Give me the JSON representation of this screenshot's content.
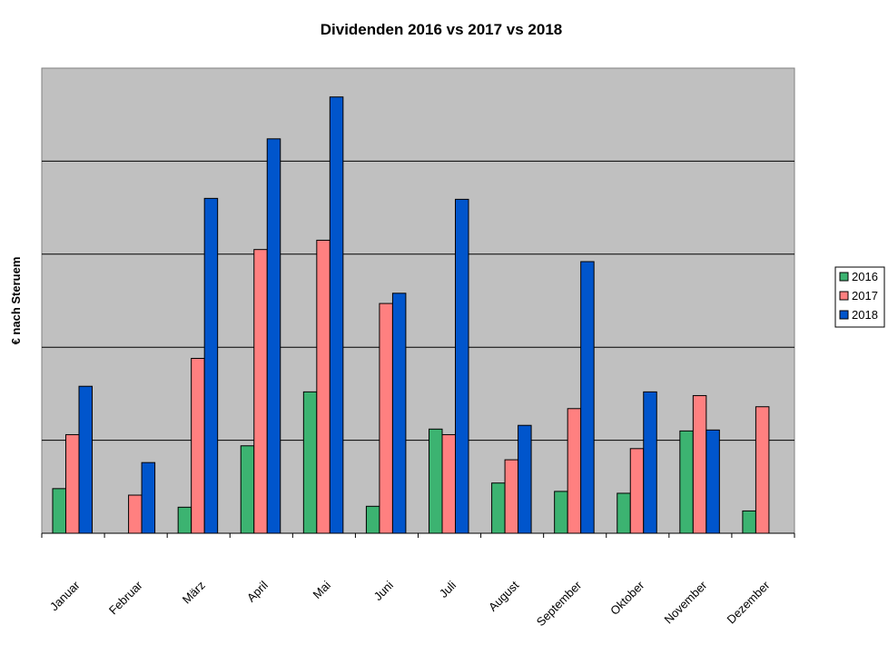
{
  "chart_data": {
    "type": "bar",
    "title": "Dividenden 2016 vs 2017 vs 2018",
    "xlabel": "",
    "ylabel": "€ nach Steruem",
    "categories": [
      "Januar",
      "Februar",
      "März",
      "April",
      "Mai",
      "Juni",
      "Juli",
      "August",
      "September",
      "Oktober",
      "November",
      "Dezember"
    ],
    "series": [
      {
        "name": "2016",
        "color": "#3cb371",
        "values": [
          0.48,
          0,
          0.28,
          0.94,
          1.52,
          0.29,
          1.12,
          0.54,
          0.45,
          0.43,
          1.1,
          0.24
        ]
      },
      {
        "name": "2017",
        "color": "#ff8080",
        "values": [
          1.06,
          0.41,
          1.88,
          3.05,
          3.15,
          2.47,
          1.06,
          0.79,
          1.34,
          0.91,
          1.48,
          1.36
        ]
      },
      {
        "name": "2018",
        "color": "#0055cc",
        "values": [
          1.58,
          0.76,
          3.6,
          4.24,
          4.69,
          2.58,
          3.59,
          1.16,
          2.92,
          1.52,
          1.11,
          0
        ]
      }
    ],
    "ylim": [
      0,
      5
    ],
    "grid": true,
    "plot_background": "#c0c0c0",
    "legend": "right"
  }
}
